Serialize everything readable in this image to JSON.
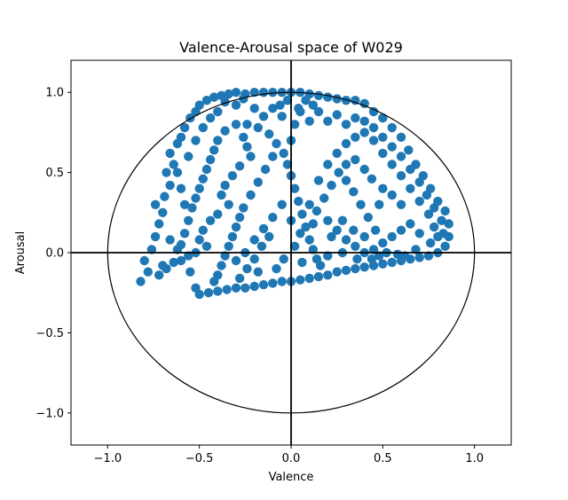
{
  "chart_data": {
    "type": "scatter",
    "title": "Valence-Arousal space of W029",
    "xlabel": "Valence",
    "ylabel": "Arousal",
    "xlim": [
      -1.2,
      1.2
    ],
    "ylim": [
      -1.2,
      1.2
    ],
    "xticks": [
      -1.0,
      -0.5,
      0.0,
      0.5,
      1.0
    ],
    "yticks": [
      -1.0,
      -0.5,
      0.0,
      0.5,
      1.0
    ],
    "xtick_labels": [
      "−1.0",
      "−0.5",
      "0.0",
      "0.5",
      "1.0"
    ],
    "ytick_labels": [
      "−1.0",
      "−0.5",
      "0.0",
      "0.5",
      "1.0"
    ],
    "grid": false,
    "reference": {
      "unit_circle_radius": 1.0,
      "axis_lines": [
        "x=0",
        "y=0"
      ]
    },
    "colors": {
      "points": "#1f77b4",
      "reference": "#000000"
    },
    "series": [
      {
        "points": [
          [
            -0.82,
            -0.18
          ],
          [
            -0.78,
            -0.12
          ],
          [
            -0.8,
            -0.05
          ],
          [
            -0.76,
            0.02
          ],
          [
            -0.74,
            0.1
          ],
          [
            -0.72,
            0.18
          ],
          [
            -0.7,
            0.25
          ],
          [
            -0.74,
            0.3
          ],
          [
            -0.69,
            0.35
          ],
          [
            -0.66,
            0.42
          ],
          [
            -0.68,
            0.5
          ],
          [
            -0.64,
            0.55
          ],
          [
            -0.66,
            0.62
          ],
          [
            -0.62,
            0.68
          ],
          [
            -0.6,
            0.72
          ],
          [
            -0.58,
            0.78
          ],
          [
            -0.55,
            0.84
          ],
          [
            -0.52,
            0.88
          ],
          [
            -0.5,
            0.92
          ],
          [
            -0.46,
            0.95
          ],
          [
            -0.42,
            0.97
          ],
          [
            -0.38,
            0.98
          ],
          [
            -0.34,
            0.99
          ],
          [
            -0.3,
            1.0
          ],
          [
            -0.25,
            0.99
          ],
          [
            -0.2,
            1.0
          ],
          [
            -0.15,
            1.0
          ],
          [
            -0.1,
            1.0
          ],
          [
            -0.05,
            1.0
          ],
          [
            0.0,
            1.0
          ],
          [
            0.05,
            1.0
          ],
          [
            0.1,
            0.99
          ],
          [
            0.15,
            0.98
          ],
          [
            0.2,
            0.97
          ],
          [
            0.25,
            0.96
          ],
          [
            0.3,
            0.95
          ],
          [
            0.35,
            0.95
          ],
          [
            0.4,
            0.93
          ],
          [
            0.45,
            0.88
          ],
          [
            0.5,
            0.84
          ],
          [
            0.55,
            0.78
          ],
          [
            0.6,
            0.72
          ],
          [
            0.64,
            0.64
          ],
          [
            0.68,
            0.55
          ],
          [
            0.72,
            0.48
          ],
          [
            0.76,
            0.4
          ],
          [
            0.8,
            0.32
          ],
          [
            0.84,
            0.26
          ],
          [
            0.86,
            0.18
          ],
          [
            0.86,
            0.1
          ],
          [
            0.84,
            0.04
          ],
          [
            0.8,
            0.0
          ],
          [
            0.75,
            -0.02
          ],
          [
            0.7,
            -0.03
          ],
          [
            0.65,
            -0.04
          ],
          [
            0.6,
            -0.05
          ],
          [
            0.55,
            -0.06
          ],
          [
            0.5,
            -0.07
          ],
          [
            0.45,
            -0.08
          ],
          [
            0.4,
            -0.09
          ],
          [
            0.35,
            -0.1
          ],
          [
            0.3,
            -0.11
          ],
          [
            0.25,
            -0.12
          ],
          [
            0.2,
            -0.14
          ],
          [
            0.15,
            -0.15
          ],
          [
            0.1,
            -0.16
          ],
          [
            0.05,
            -0.17
          ],
          [
            0.0,
            -0.18
          ],
          [
            -0.05,
            -0.18
          ],
          [
            -0.1,
            -0.19
          ],
          [
            -0.15,
            -0.2
          ],
          [
            -0.2,
            -0.21
          ],
          [
            -0.25,
            -0.22
          ],
          [
            -0.3,
            -0.22
          ],
          [
            -0.35,
            -0.23
          ],
          [
            -0.4,
            -0.24
          ],
          [
            -0.45,
            -0.25
          ],
          [
            -0.5,
            -0.26
          ],
          [
            -0.52,
            -0.22
          ],
          [
            -0.55,
            -0.12
          ],
          [
            -0.6,
            -0.05
          ],
          [
            -0.62,
            0.02
          ],
          [
            -0.66,
            0.08
          ],
          [
            -0.7,
            -0.08
          ],
          [
            -0.72,
            -0.14
          ],
          [
            -0.68,
            -0.1
          ],
          [
            -0.64,
            -0.06
          ],
          [
            -0.6,
            0.05
          ],
          [
            -0.58,
            0.12
          ],
          [
            -0.56,
            0.2
          ],
          [
            -0.54,
            0.28
          ],
          [
            -0.52,
            0.34
          ],
          [
            -0.5,
            0.4
          ],
          [
            -0.48,
            0.46
          ],
          [
            -0.46,
            0.52
          ],
          [
            -0.44,
            0.58
          ],
          [
            -0.42,
            0.64
          ],
          [
            -0.4,
            0.7
          ],
          [
            -0.36,
            0.76
          ],
          [
            -0.3,
            0.8
          ],
          [
            -0.24,
            0.8
          ],
          [
            -0.18,
            0.78
          ],
          [
            -0.12,
            0.74
          ],
          [
            -0.08,
            0.68
          ],
          [
            -0.04,
            0.62
          ],
          [
            -0.02,
            0.55
          ],
          [
            0.0,
            0.48
          ],
          [
            0.02,
            0.4
          ],
          [
            0.04,
            0.32
          ],
          [
            0.06,
            0.24
          ],
          [
            0.08,
            0.16
          ],
          [
            0.1,
            0.08
          ],
          [
            0.12,
            0.02
          ],
          [
            0.14,
            -0.04
          ],
          [
            0.16,
            -0.08
          ],
          [
            -0.1,
            0.6
          ],
          [
            -0.14,
            0.52
          ],
          [
            -0.18,
            0.44
          ],
          [
            -0.22,
            0.36
          ],
          [
            -0.26,
            0.28
          ],
          [
            -0.28,
            0.22
          ],
          [
            -0.3,
            0.16
          ],
          [
            -0.32,
            0.1
          ],
          [
            -0.34,
            0.04
          ],
          [
            -0.36,
            -0.02
          ],
          [
            -0.38,
            -0.08
          ],
          [
            -0.4,
            -0.14
          ],
          [
            -0.42,
            -0.18
          ],
          [
            -0.3,
            -0.05
          ],
          [
            -0.25,
            0.0
          ],
          [
            -0.2,
            0.08
          ],
          [
            -0.15,
            0.15
          ],
          [
            -0.1,
            0.22
          ],
          [
            -0.05,
            0.3
          ],
          [
            0.0,
            0.2
          ],
          [
            0.05,
            0.12
          ],
          [
            0.1,
            0.3
          ],
          [
            0.15,
            0.45
          ],
          [
            0.2,
            0.55
          ],
          [
            0.25,
            0.62
          ],
          [
            0.3,
            0.68
          ],
          [
            0.35,
            0.72
          ],
          [
            0.4,
            0.75
          ],
          [
            0.45,
            0.7
          ],
          [
            0.5,
            0.62
          ],
          [
            0.55,
            0.55
          ],
          [
            0.6,
            0.48
          ],
          [
            0.65,
            0.4
          ],
          [
            0.7,
            0.32
          ],
          [
            0.75,
            0.24
          ],
          [
            0.78,
            0.16
          ],
          [
            0.8,
            0.1
          ],
          [
            0.2,
            0.2
          ],
          [
            0.25,
            0.14
          ],
          [
            0.3,
            0.08
          ],
          [
            0.35,
            0.04
          ],
          [
            0.4,
            0.0
          ],
          [
            0.45,
            0.02
          ],
          [
            0.5,
            0.06
          ],
          [
            0.55,
            0.1
          ],
          [
            0.6,
            0.14
          ],
          [
            0.65,
            0.18
          ],
          [
            0.7,
            0.12
          ],
          [
            0.6,
            0.3
          ],
          [
            0.55,
            0.36
          ],
          [
            0.5,
            0.4
          ],
          [
            0.48,
            0.3
          ],
          [
            0.42,
            0.22
          ],
          [
            0.38,
            0.3
          ],
          [
            0.34,
            0.38
          ],
          [
            0.3,
            0.45
          ],
          [
            0.26,
            0.5
          ],
          [
            0.22,
            0.42
          ],
          [
            0.18,
            0.34
          ],
          [
            0.14,
            0.26
          ],
          [
            0.12,
            0.18
          ],
          [
            0.3,
            0.55
          ],
          [
            0.35,
            0.58
          ],
          [
            0.4,
            0.52
          ],
          [
            0.44,
            0.46
          ],
          [
            -0.26,
            0.72
          ],
          [
            -0.24,
            0.66
          ],
          [
            -0.22,
            0.6
          ],
          [
            -0.28,
            0.54
          ],
          [
            -0.32,
            0.48
          ],
          [
            -0.36,
            0.42
          ],
          [
            -0.38,
            0.36
          ],
          [
            -0.34,
            0.3
          ],
          [
            -0.4,
            0.24
          ],
          [
            -0.44,
            0.2
          ],
          [
            -0.48,
            0.14
          ],
          [
            -0.5,
            0.08
          ],
          [
            -0.46,
            0.04
          ],
          [
            -0.52,
            0.0
          ],
          [
            -0.56,
            -0.02
          ],
          [
            -0.58,
            0.3
          ],
          [
            -0.6,
            0.4
          ],
          [
            -0.62,
            0.5
          ],
          [
            -0.56,
            0.6
          ],
          [
            -0.52,
            0.7
          ],
          [
            -0.48,
            0.78
          ],
          [
            -0.44,
            0.84
          ],
          [
            -0.4,
            0.88
          ],
          [
            -0.2,
            0.9
          ],
          [
            -0.15,
            0.85
          ],
          [
            -0.1,
            0.9
          ],
          [
            -0.05,
            0.85
          ],
          [
            0.05,
            0.88
          ],
          [
            0.1,
            0.82
          ],
          [
            0.15,
            0.88
          ],
          [
            0.2,
            0.82
          ],
          [
            0.25,
            0.86
          ],
          [
            0.3,
            0.8
          ],
          [
            0.35,
            0.84
          ],
          [
            0.4,
            0.82
          ],
          [
            0.45,
            0.78
          ],
          [
            0.5,
            0.72
          ],
          [
            0.55,
            0.66
          ],
          [
            0.6,
            0.6
          ],
          [
            0.65,
            0.52
          ],
          [
            0.7,
            0.44
          ],
          [
            0.74,
            0.36
          ],
          [
            0.78,
            0.28
          ],
          [
            0.82,
            0.2
          ],
          [
            0.83,
            0.12
          ],
          [
            0.76,
            0.06
          ],
          [
            0.68,
            0.02
          ],
          [
            0.62,
            -0.02
          ],
          [
            0.58,
            -0.01
          ],
          [
            0.52,
            0.0
          ],
          [
            0.0,
            0.7
          ],
          [
            0.02,
            0.8
          ],
          [
            0.04,
            0.9
          ],
          [
            -0.02,
            0.95
          ],
          [
            0.08,
            0.95
          ],
          [
            0.12,
            0.92
          ],
          [
            -0.06,
            0.92
          ],
          [
            -0.3,
            0.92
          ],
          [
            -0.26,
            0.96
          ],
          [
            -0.36,
            0.94
          ],
          [
            -0.12,
            0.1
          ],
          [
            -0.16,
            0.04
          ],
          [
            -0.2,
            -0.04
          ],
          [
            -0.24,
            -0.1
          ],
          [
            -0.28,
            -0.16
          ],
          [
            -0.18,
            -0.12
          ],
          [
            -0.08,
            -0.1
          ],
          [
            -0.04,
            -0.04
          ],
          [
            0.02,
            0.04
          ],
          [
            0.06,
            -0.06
          ],
          [
            0.2,
            -0.02
          ],
          [
            0.28,
            0.0
          ],
          [
            0.36,
            -0.04
          ],
          [
            0.44,
            -0.04
          ],
          [
            0.48,
            -0.02
          ],
          [
            0.22,
            0.1
          ],
          [
            0.28,
            0.2
          ],
          [
            0.34,
            0.14
          ],
          [
            0.4,
            0.1
          ],
          [
            0.46,
            0.14
          ]
        ]
      }
    ]
  }
}
